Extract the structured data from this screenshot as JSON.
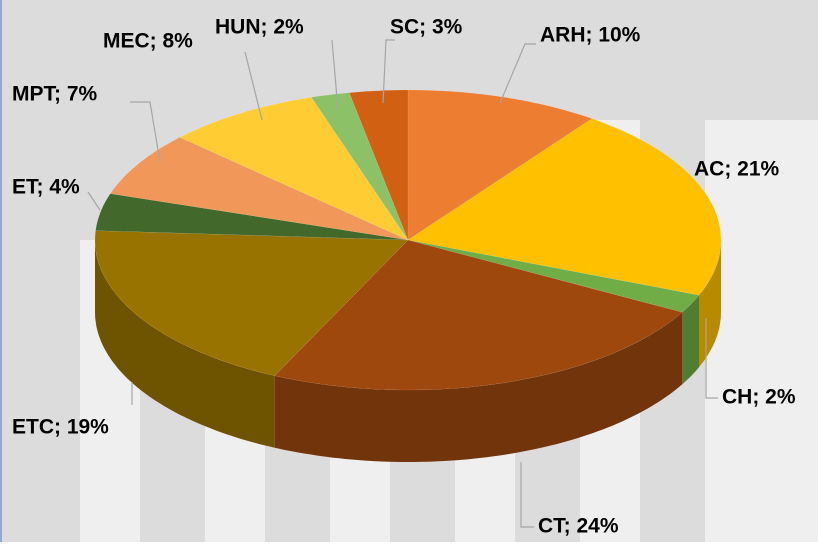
{
  "chart_data": {
    "type": "pie3d",
    "value_labels": [
      "ARH; 10%",
      "AC; 21%",
      "CH; 2%",
      "CT; 24%",
      "ETC; 19%",
      "ET; 4%",
      "MPT; 7%",
      "MEC; 8%",
      "HUN; 2%",
      "SC; 3%"
    ],
    "values": [
      10,
      21,
      2,
      24,
      19,
      4,
      7,
      8,
      2,
      3
    ],
    "colors": [
      "#ED7D31",
      "#FFC000",
      "#70AD47",
      "#9E480E",
      "#997300",
      "#43682B",
      "#F1975A",
      "#FFCD33",
      "#8CC168",
      "#D26012"
    ]
  }
}
